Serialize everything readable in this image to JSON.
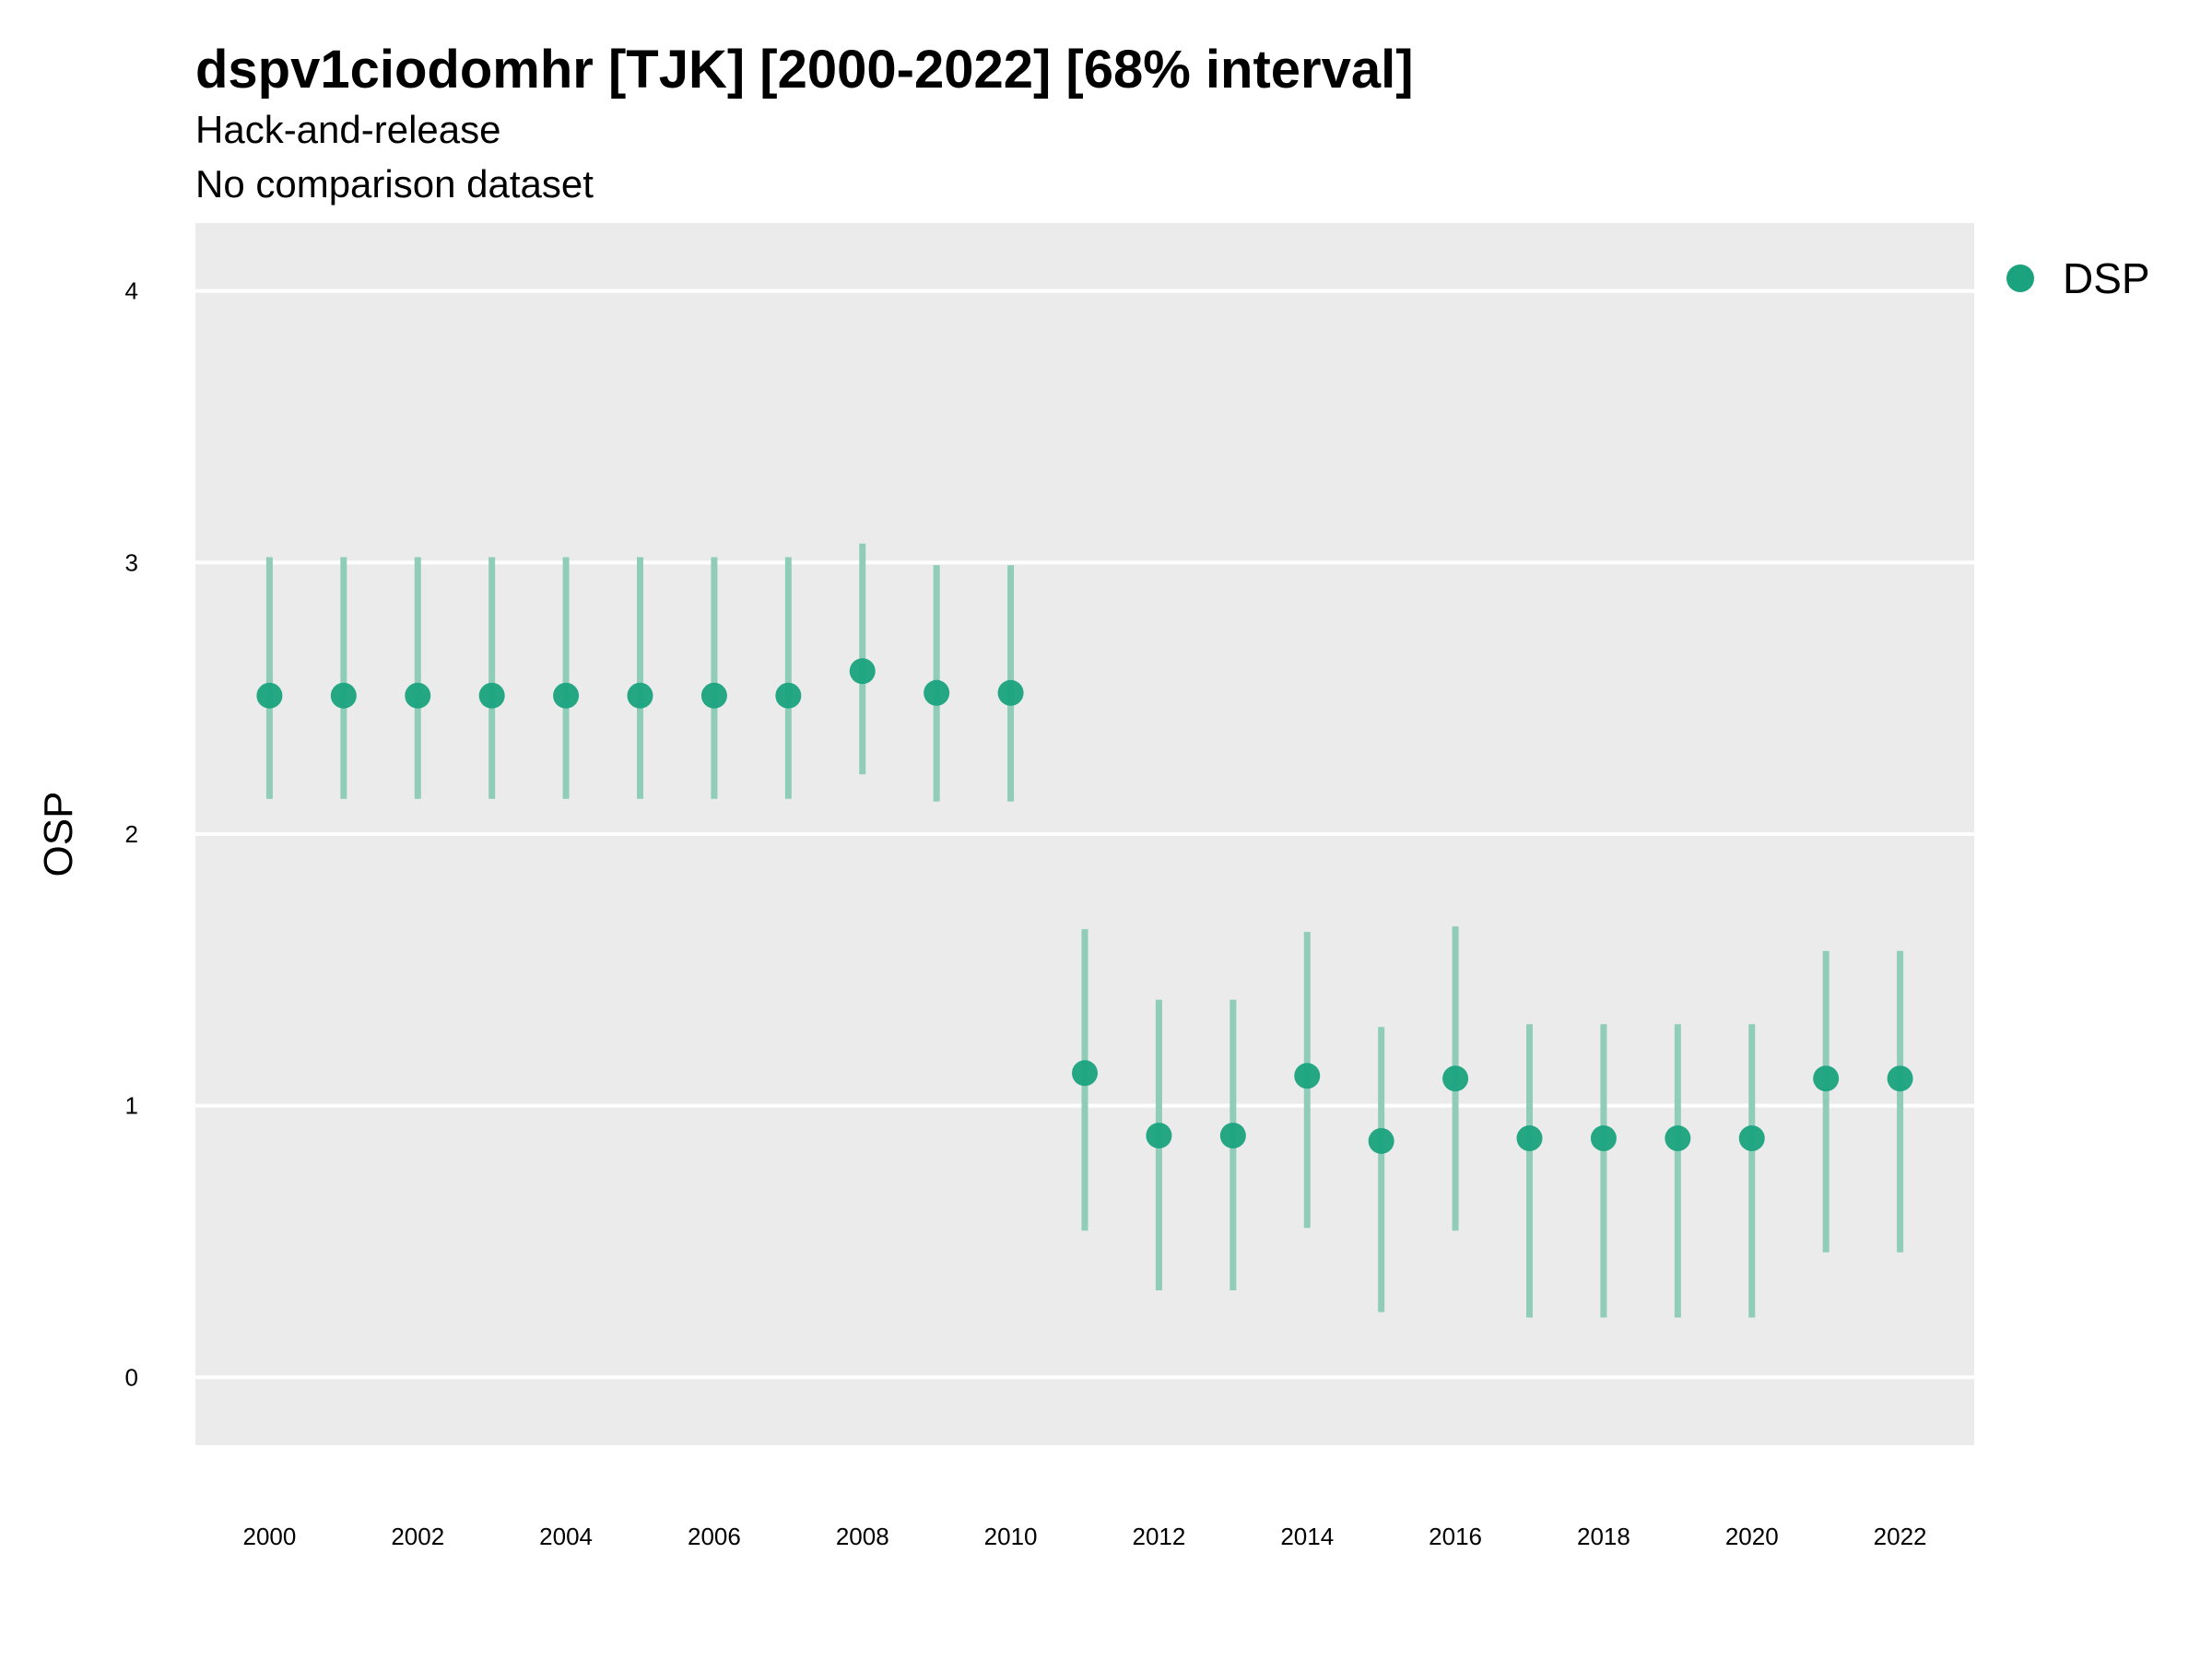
{
  "colors": {
    "accent": "#1aa37e",
    "interval": "#8fcdb8",
    "panel_background": "#ebebeb",
    "gridline": "#ffffff"
  },
  "chart_data": {
    "type": "scatter",
    "title": "dspv1ciodomhr [TJK] [2000-2022] [68% interval]",
    "subtitle_lines": [
      "Hack-and-release",
      "No comparison dataset"
    ],
    "xlabel": "",
    "ylabel": "OSP",
    "ylim": [
      -0.25,
      4.25
    ],
    "xlim": [
      1999,
      2023
    ],
    "y_ticks": [
      0,
      1,
      2,
      3,
      4
    ],
    "x_ticks": [
      2000,
      2002,
      2004,
      2006,
      2008,
      2010,
      2012,
      2014,
      2016,
      2018,
      2020,
      2022
    ],
    "grid": true,
    "legend_position": "right",
    "series": [
      {
        "name": "DSP",
        "x": [
          2000,
          2001,
          2002,
          2003,
          2004,
          2005,
          2006,
          2007,
          2008,
          2009,
          2010,
          2011,
          2012,
          2013,
          2014,
          2015,
          2016,
          2017,
          2018,
          2019,
          2020,
          2021,
          2022
        ],
        "y": [
          2.51,
          2.51,
          2.51,
          2.51,
          2.51,
          2.51,
          2.51,
          2.51,
          2.6,
          2.52,
          2.52,
          1.12,
          0.89,
          0.89,
          1.11,
          0.87,
          1.1,
          0.88,
          0.88,
          0.88,
          0.88,
          1.1,
          1.1
        ],
        "lower": [
          2.13,
          2.13,
          2.13,
          2.13,
          2.13,
          2.13,
          2.13,
          2.13,
          2.22,
          2.12,
          2.12,
          0.54,
          0.32,
          0.32,
          0.55,
          0.24,
          0.54,
          0.22,
          0.22,
          0.22,
          0.22,
          0.46,
          0.46
        ],
        "upper": [
          3.02,
          3.02,
          3.02,
          3.02,
          3.02,
          3.02,
          3.02,
          3.02,
          3.07,
          2.99,
          2.99,
          1.65,
          1.39,
          1.39,
          1.64,
          1.29,
          1.66,
          1.3,
          1.3,
          1.3,
          1.3,
          1.57,
          1.57
        ]
      }
    ]
  }
}
